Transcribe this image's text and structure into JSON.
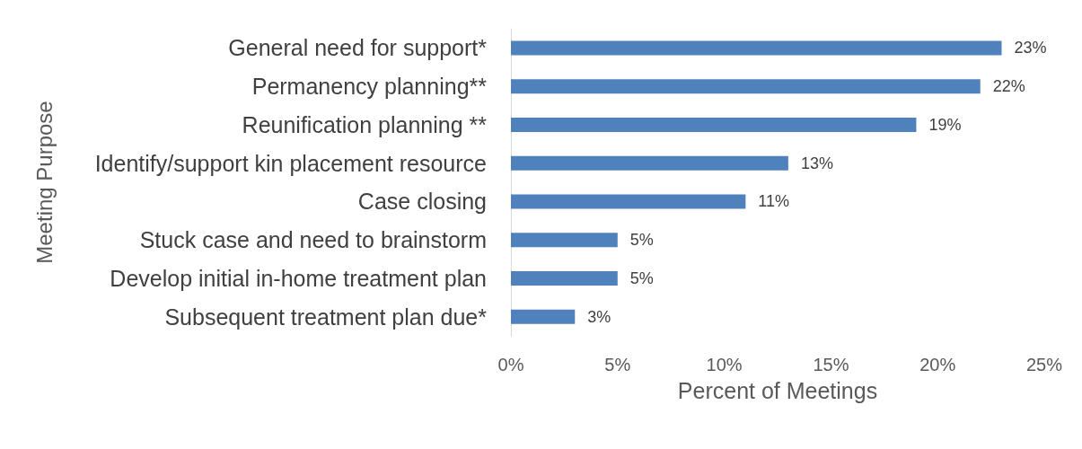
{
  "chart_data": {
    "type": "bar",
    "orientation": "horizontal",
    "categories": [
      "General need for support*",
      "Permanency planning**",
      "Reunification planning **",
      "Identify/support kin placement resource",
      "Case closing",
      "Stuck case and need to brainstorm",
      "Develop initial in-home treatment plan",
      "Subsequent treatment plan due*"
    ],
    "values": [
      23,
      22,
      19,
      13,
      11,
      5,
      5,
      3
    ],
    "value_labels": [
      "23%",
      "22%",
      "19%",
      "13%",
      "11%",
      "5%",
      "5%",
      "3%"
    ],
    "color": "#4f81bd",
    "xlabel": "Percent of Meetings",
    "ylabel": "Meeting Purpose",
    "xlim": [
      0,
      25
    ],
    "xticks": [
      {
        "value": 0,
        "label": "0%"
      },
      {
        "value": 5,
        "label": "5%"
      },
      {
        "value": 10,
        "label": "10%"
      },
      {
        "value": 15,
        "label": "15%"
      },
      {
        "value": 20,
        "label": "20%"
      },
      {
        "value": 25,
        "label": "25%"
      }
    ],
    "grid": false
  }
}
